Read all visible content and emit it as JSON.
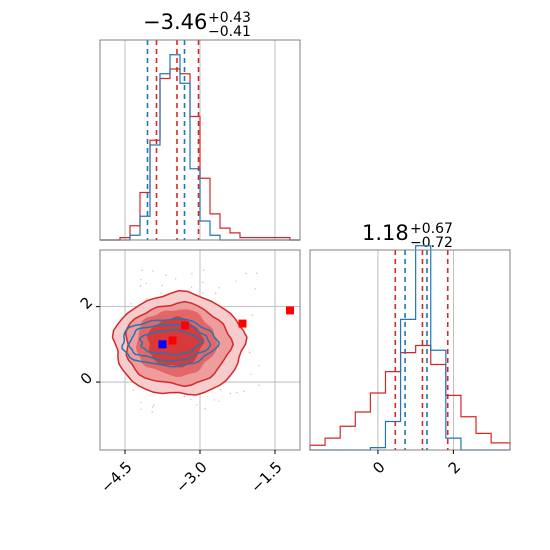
{
  "chart_data": {
    "type": "corner",
    "colors": {
      "red": "#d62728",
      "blue": "#1f77b4",
      "grid": "#b0b0b0",
      "frame": "#808080"
    },
    "param1_title": {
      "main": "−3.46",
      "sup": "+0.43",
      "sub": "−0.41"
    },
    "param2_title": {
      "main": "1.18",
      "sup": "+0.67",
      "sub": "−0.72"
    },
    "x1_range": [
      -5.0,
      -1.0
    ],
    "x1_ticks": [
      -4.5,
      -3.0,
      -1.5
    ],
    "x1_tick_labels": [
      "−4.5",
      "−3.0",
      "−1.5"
    ],
    "x2_range": [
      -1.8,
      3.5
    ],
    "x2_ticks": [
      0,
      2
    ],
    "x2_tick_labels": [
      "0",
      "2"
    ],
    "y2_range": [
      -1.8,
      3.5
    ],
    "y2_ticks": [
      0,
      2
    ],
    "y2_tick_labels": [
      "0",
      "2"
    ],
    "hist1": {
      "bins": [
        -5.0,
        -4.8,
        -4.6,
        -4.4,
        -4.2,
        -4.0,
        -3.8,
        -3.6,
        -3.4,
        -3.2,
        -3.0,
        -2.8,
        -2.6,
        -2.4,
        -2.2,
        -2.0,
        -1.8,
        -1.6,
        -1.4,
        -1.2,
        -1.0
      ],
      "red": [
        0,
        0,
        0.01,
        0.06,
        0.2,
        0.42,
        0.68,
        0.72,
        0.7,
        0.52,
        0.26,
        0.11,
        0.05,
        0.03,
        0.01,
        0.01,
        0.01,
        0.01,
        0.01,
        0,
        0
      ],
      "blue": [
        0,
        0,
        0,
        0.02,
        0.1,
        0.4,
        0.7,
        0.78,
        0.66,
        0.3,
        0.08,
        0.02,
        0,
        0,
        0,
        0,
        0,
        0,
        0,
        0
      ],
      "red_quantiles": [
        -3.87,
        -3.46,
        -3.03
      ],
      "blue_quantiles": [
        -4.05,
        -3.31
      ]
    },
    "hist2": {
      "bins": [
        -1.8,
        -1.4,
        -1.0,
        -0.6,
        -0.2,
        0.2,
        0.6,
        1.0,
        1.4,
        1.8,
        2.2,
        2.6,
        3.0,
        3.5
      ],
      "red": [
        0.02,
        0.05,
        0.1,
        0.16,
        0.24,
        0.33,
        0.41,
        0.44,
        0.36,
        0.23,
        0.14,
        0.07,
        0.03
      ],
      "blue": [
        0,
        0,
        0,
        0,
        0.01,
        0.12,
        0.55,
        0.86,
        0.42,
        0.05,
        0,
        0,
        0
      ],
      "red_quantiles": [
        0.46,
        1.18,
        1.85
      ],
      "blue_quantiles": [
        0.72,
        1.3
      ]
    },
    "joint": {
      "red_markers": [
        [
          -3.55,
          1.1
        ],
        [
          -3.3,
          1.5
        ],
        [
          -2.15,
          1.55
        ],
        [
          -1.2,
          1.9
        ]
      ],
      "blue_marker": [
        -3.75,
        1.0
      ]
    }
  }
}
